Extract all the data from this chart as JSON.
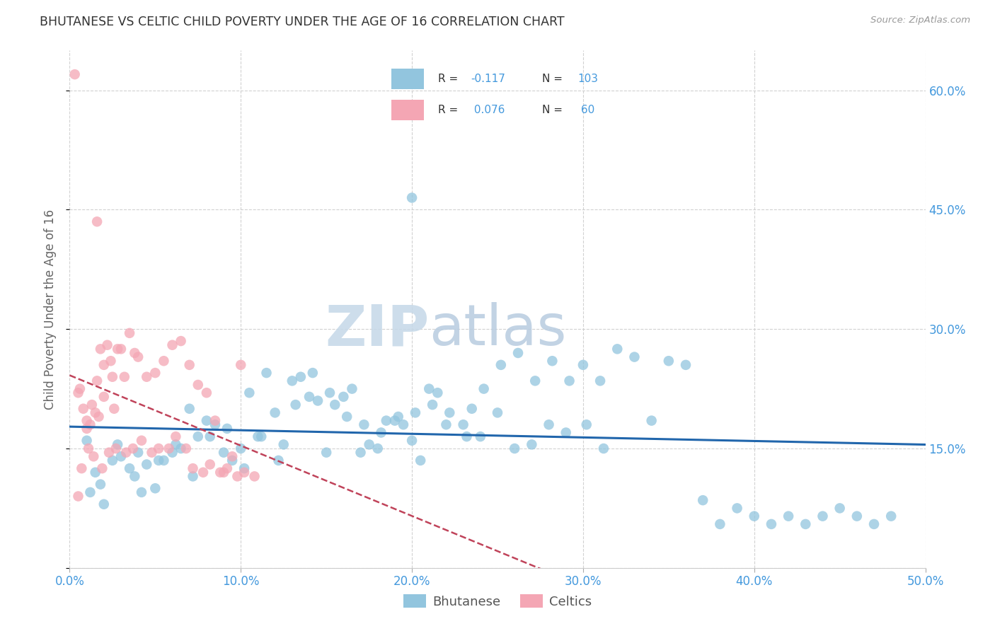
{
  "title": "BHUTANESE VS CELTIC CHILD POVERTY UNDER THE AGE OF 16 CORRELATION CHART",
  "source": "Source: ZipAtlas.com",
  "xlim": [
    0,
    50
  ],
  "ylim": [
    0,
    65
  ],
  "ylabel": "Child Poverty Under the Age of 16",
  "legend_label1": "Bhutanese",
  "legend_label2": "Celtics",
  "blue_color": "#92C5DE",
  "pink_color": "#F4A6B4",
  "blue_line_color": "#2166AC",
  "pink_line_color": "#C0435A",
  "watermark_zip": "ZIP",
  "watermark_atlas": "atlas",
  "watermark_color_zip": "#D0DFEd",
  "watermark_color_atlas": "#B8CCE0",
  "grid_color": "#CCCCCC",
  "title_color": "#333333",
  "tick_color": "#4499DD",
  "source_color": "#999999",
  "ylabel_color": "#666666",
  "blue_x": [
    1.5,
    1.8,
    2.0,
    2.5,
    3.0,
    3.5,
    4.0,
    4.5,
    5.0,
    5.5,
    6.0,
    6.5,
    7.0,
    7.5,
    8.0,
    8.5,
    9.0,
    9.5,
    10.0,
    10.5,
    11.0,
    11.5,
    12.0,
    12.5,
    13.0,
    13.5,
    14.0,
    14.5,
    15.0,
    15.5,
    16.0,
    16.5,
    17.0,
    17.5,
    18.0,
    18.5,
    19.0,
    19.5,
    20.0,
    20.5,
    21.0,
    21.5,
    22.0,
    23.0,
    23.5,
    24.0,
    25.0,
    26.0,
    27.0,
    28.0,
    29.0,
    30.0,
    31.0,
    32.0,
    33.0,
    34.0,
    35.0,
    36.0,
    37.0,
    38.0,
    39.0,
    40.0,
    41.0,
    42.0,
    43.0,
    44.0,
    45.0,
    46.0,
    47.0,
    48.0,
    1.2,
    1.0,
    2.8,
    3.8,
    4.2,
    5.2,
    6.2,
    7.2,
    8.2,
    9.2,
    10.2,
    11.2,
    12.2,
    13.2,
    14.2,
    15.2,
    16.2,
    17.2,
    18.2,
    19.2,
    20.2,
    21.2,
    22.2,
    23.2,
    24.2,
    25.2,
    26.2,
    27.2,
    28.2,
    29.2,
    30.2,
    31.2,
    20.0
  ],
  "blue_y": [
    12.0,
    10.5,
    8.0,
    13.5,
    14.0,
    12.5,
    14.5,
    13.0,
    10.0,
    13.5,
    14.5,
    15.0,
    20.0,
    16.5,
    18.5,
    18.0,
    14.5,
    13.5,
    15.0,
    22.0,
    16.5,
    24.5,
    19.5,
    15.5,
    23.5,
    24.0,
    21.5,
    21.0,
    14.5,
    20.5,
    21.5,
    22.5,
    14.5,
    15.5,
    15.0,
    18.5,
    18.5,
    18.0,
    16.0,
    13.5,
    22.5,
    22.0,
    18.0,
    18.0,
    20.0,
    16.5,
    19.5,
    15.0,
    15.5,
    18.0,
    17.0,
    25.5,
    23.5,
    27.5,
    26.5,
    18.5,
    26.0,
    25.5,
    8.5,
    5.5,
    7.5,
    6.5,
    5.5,
    6.5,
    5.5,
    6.5,
    7.5,
    6.5,
    5.5,
    6.5,
    9.5,
    16.0,
    15.5,
    11.5,
    9.5,
    13.5,
    15.5,
    11.5,
    16.5,
    17.5,
    12.5,
    16.5,
    13.5,
    20.5,
    24.5,
    22.0,
    19.0,
    18.0,
    17.0,
    19.0,
    19.5,
    20.5,
    19.5,
    16.5,
    22.5,
    25.5,
    27.0,
    23.5,
    26.0,
    23.5,
    18.0,
    15.0,
    46.5
  ],
  "pink_x": [
    0.5,
    0.8,
    1.0,
    1.0,
    1.2,
    1.3,
    1.5,
    1.6,
    1.7,
    1.8,
    2.0,
    2.0,
    2.2,
    2.4,
    2.5,
    2.6,
    2.8,
    3.0,
    3.2,
    3.5,
    3.8,
    4.0,
    4.5,
    5.0,
    5.5,
    6.0,
    6.5,
    7.0,
    7.5,
    8.0,
    8.5,
    9.0,
    9.5,
    10.0,
    0.5,
    0.7,
    1.1,
    1.4,
    1.9,
    2.3,
    2.7,
    3.3,
    3.7,
    4.2,
    4.8,
    5.2,
    5.8,
    6.2,
    6.8,
    7.2,
    7.8,
    8.2,
    8.8,
    9.2,
    9.8,
    10.2,
    10.8,
    0.6,
    1.6,
    0.3
  ],
  "pink_y": [
    22.0,
    20.0,
    17.5,
    18.5,
    18.0,
    20.5,
    19.5,
    23.5,
    19.0,
    27.5,
    25.5,
    21.5,
    28.0,
    26.0,
    24.0,
    20.0,
    27.5,
    27.5,
    24.0,
    29.5,
    27.0,
    26.5,
    24.0,
    24.5,
    26.0,
    28.0,
    28.5,
    25.5,
    23.0,
    22.0,
    18.5,
    12.0,
    14.0,
    25.5,
    9.0,
    12.5,
    15.0,
    14.0,
    12.5,
    14.5,
    15.0,
    14.5,
    15.0,
    16.0,
    14.5,
    15.0,
    15.0,
    16.5,
    15.0,
    12.5,
    12.0,
    13.0,
    12.0,
    12.5,
    11.5,
    12.0,
    11.5,
    22.5,
    43.5,
    62.0
  ]
}
